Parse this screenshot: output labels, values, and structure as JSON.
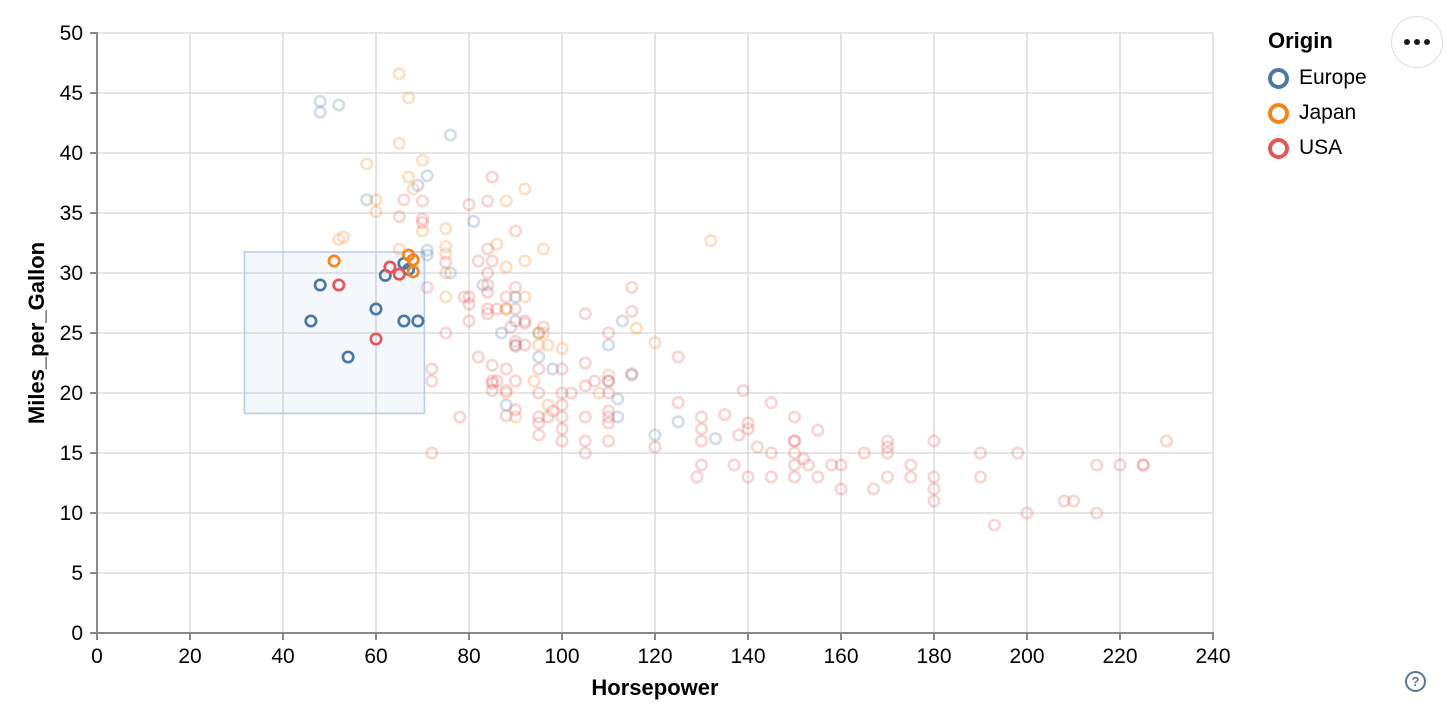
{
  "chart_data": {
    "type": "scatter",
    "xlabel": "Horsepower",
    "ylabel": "Miles_per_Gallon",
    "xlim": [
      0,
      240
    ],
    "ylim": [
      0,
      50
    ],
    "x_ticks": [
      0,
      20,
      40,
      60,
      80,
      100,
      120,
      140,
      160,
      180,
      200,
      220,
      240
    ],
    "y_ticks": [
      0,
      5,
      10,
      15,
      20,
      25,
      30,
      35,
      40,
      45,
      50
    ],
    "grid": true,
    "legend": {
      "title": "Origin",
      "position": "top-right",
      "entries": [
        {
          "label": "Europe",
          "color": "#4c78a8"
        },
        {
          "label": "Japan",
          "color": "#f58518"
        },
        {
          "label": "USA",
          "color": "#e45756"
        }
      ]
    },
    "brush": {
      "x": [
        31.7,
        70.4
      ],
      "y": [
        18.3,
        31.75
      ],
      "fill": "#7596c8",
      "fill_opacity": 0.08,
      "stroke": "#b7cdf0"
    },
    "point_style": {
      "radius": 5.2,
      "stroke_width": 2.7,
      "faded_opacity": 0.25,
      "selected_opacity": 1
    },
    "axis_style": {
      "grid_color": "#dddddd",
      "domain_color": "#888888",
      "tick_color": "#888888",
      "label_color": "#000000"
    },
    "series": [
      {
        "name": "Europe",
        "color": "#4c78a8",
        "points": [
          [
            46,
            26
          ],
          [
            48,
            29
          ],
          [
            54,
            23
          ],
          [
            60,
            27
          ],
          [
            62,
            29.8
          ],
          [
            66,
            26
          ],
          [
            69,
            26
          ],
          [
            66,
            30.8
          ],
          [
            67,
            30.3
          ],
          [
            48,
            44.3
          ],
          [
            52,
            44
          ],
          [
            48,
            43.4
          ],
          [
            76,
            41.5
          ],
          [
            71,
            38.1
          ],
          [
            69,
            37.3
          ],
          [
            58,
            36.1
          ],
          [
            81,
            34.3
          ],
          [
            71,
            31.9
          ],
          [
            71,
            31.5
          ],
          [
            76,
            30
          ],
          [
            83,
            29
          ],
          [
            90,
            28
          ],
          [
            90,
            26
          ],
          [
            90,
            24
          ],
          [
            110,
            24
          ],
          [
            87,
            25
          ],
          [
            95,
            25
          ],
          [
            95,
            23
          ],
          [
            98,
            22
          ],
          [
            113,
            26
          ],
          [
            115,
            21.6
          ],
          [
            110,
            21
          ],
          [
            88,
            19
          ],
          [
            112,
            18
          ],
          [
            112,
            19.5
          ],
          [
            125,
            17.6
          ],
          [
            120,
            16.5
          ],
          [
            133,
            16.2
          ]
        ]
      },
      {
        "name": "Japan",
        "color": "#f58518",
        "points": [
          [
            51,
            31
          ],
          [
            67,
            31.5
          ],
          [
            68,
            31.1
          ],
          [
            68,
            30.1
          ],
          [
            65,
            46.6
          ],
          [
            67,
            44.6
          ],
          [
            65,
            40.8
          ],
          [
            70,
            39.4
          ],
          [
            58,
            39.1
          ],
          [
            67,
            38
          ],
          [
            68,
            37
          ],
          [
            92,
            37
          ],
          [
            88,
            36
          ],
          [
            60,
            36.1
          ],
          [
            60,
            35.1
          ],
          [
            75,
            33.7
          ],
          [
            70,
            33.5
          ],
          [
            53,
            33
          ],
          [
            52,
            32.8
          ],
          [
            96,
            32
          ],
          [
            86,
            32.4
          ],
          [
            75,
            32.2
          ],
          [
            132,
            32.7
          ],
          [
            65,
            32
          ],
          [
            75,
            31.6
          ],
          [
            92,
            31
          ],
          [
            88,
            30.5
          ],
          [
            75,
            30
          ],
          [
            75,
            28
          ],
          [
            92,
            28
          ],
          [
            88,
            27
          ],
          [
            88,
            27
          ],
          [
            97,
            24
          ],
          [
            95,
            24
          ],
          [
            96,
            25
          ],
          [
            95,
            25
          ],
          [
            116,
            25.4
          ],
          [
            120,
            24.2
          ],
          [
            94,
            21
          ],
          [
            88,
            20
          ],
          [
            90,
            18
          ],
          [
            97,
            19
          ],
          [
            100,
            23.7
          ],
          [
            110,
            21.5
          ],
          [
            108,
            20
          ]
        ]
      },
      {
        "name": "USA",
        "color": "#e45756",
        "points": [
          [
            52,
            29
          ],
          [
            60,
            24.5
          ],
          [
            63,
            30.5
          ],
          [
            65,
            29.9
          ],
          [
            130,
            18
          ],
          [
            165,
            15
          ],
          [
            150,
            18
          ],
          [
            150,
            16
          ],
          [
            140,
            17
          ],
          [
            198,
            15
          ],
          [
            220,
            14
          ],
          [
            215,
            14
          ],
          [
            225,
            14
          ],
          [
            190,
            15
          ],
          [
            170,
            15
          ],
          [
            160,
            14
          ],
          [
            150,
            15
          ],
          [
            225,
            14
          ],
          [
            95,
            22
          ],
          [
            97,
            18
          ],
          [
            85,
            21
          ],
          [
            90,
            21
          ],
          [
            215,
            10
          ],
          [
            200,
            10
          ],
          [
            210,
            11
          ],
          [
            193,
            9
          ],
          [
            100,
            19
          ],
          [
            105,
            16
          ],
          [
            175,
            13
          ],
          [
            153,
            14
          ],
          [
            180,
            12
          ],
          [
            170,
            13
          ],
          [
            175,
            14
          ],
          [
            110,
            18
          ],
          [
            72,
            21
          ],
          [
            150,
            14
          ],
          [
            180,
            13
          ],
          [
            208,
            11
          ],
          [
            155,
            13
          ],
          [
            160,
            12
          ],
          [
            190,
            13
          ],
          [
            100,
            18
          ],
          [
            130,
            16
          ],
          [
            150,
            13
          ],
          [
            158,
            14
          ],
          [
            145,
            13
          ],
          [
            137,
            14
          ],
          [
            167,
            12
          ],
          [
            180,
            11
          ],
          [
            100,
            16
          ],
          [
            145,
            15
          ],
          [
            230,
            16
          ],
          [
            75,
            25
          ],
          [
            80,
            26
          ],
          [
            100,
            20
          ],
          [
            105,
            18
          ],
          [
            72,
            22
          ],
          [
            86,
            21
          ],
          [
            107,
            21
          ],
          [
            80,
            28
          ],
          [
            78,
            18
          ],
          [
            110,
            18.5
          ],
          [
            95,
            17.5
          ],
          [
            129,
            13
          ],
          [
            89,
            25.5
          ],
          [
            110,
            21
          ],
          [
            110,
            20
          ],
          [
            98,
            18.5
          ],
          [
            180,
            16
          ],
          [
            170,
            15.5
          ],
          [
            95,
            18
          ],
          [
            140,
            17.5
          ],
          [
            120,
            15.5
          ],
          [
            152,
            14.5
          ],
          [
            150,
            16
          ],
          [
            170,
            16
          ],
          [
            110,
            16
          ],
          [
            96,
            25.5
          ],
          [
            105,
            20.6
          ],
          [
            85,
            20.8
          ],
          [
            85,
            22.3
          ],
          [
            85,
            20.2
          ],
          [
            125,
            19.2
          ],
          [
            155,
            16.9
          ],
          [
            142,
            15.5
          ],
          [
            130,
            17
          ],
          [
            110,
            17.5
          ],
          [
            138,
            16.5
          ],
          [
            135,
            18.2
          ],
          [
            115,
            21.5
          ],
          [
            139,
            20.2
          ],
          [
            145,
            19.2
          ],
          [
            125,
            23
          ],
          [
            90,
            28.8
          ],
          [
            71,
            28.8
          ],
          [
            75,
            30.9
          ],
          [
            70,
            34.2
          ],
          [
            70,
            34.5
          ],
          [
            66,
            36.1
          ],
          [
            65,
            34.7
          ],
          [
            70,
            36
          ],
          [
            80,
            35.7
          ],
          [
            115,
            28.8
          ],
          [
            115,
            26.8
          ],
          [
            90,
            33.5
          ],
          [
            84,
            26.6
          ],
          [
            88,
            28
          ],
          [
            84,
            36
          ],
          [
            84,
            32
          ],
          [
            82,
            31
          ],
          [
            79,
            28
          ],
          [
            85,
            31
          ],
          [
            84,
            29
          ],
          [
            84,
            27
          ],
          [
            84,
            28.4
          ],
          [
            92,
            24
          ],
          [
            82,
            23
          ],
          [
            84,
            30
          ],
          [
            92,
            25.8
          ],
          [
            88,
            20.2
          ],
          [
            105,
            26.6
          ],
          [
            110,
            25
          ],
          [
            90,
            24.3
          ],
          [
            90,
            18.6
          ],
          [
            80,
            27.4
          ],
          [
            92,
            26
          ],
          [
            86,
            27
          ],
          [
            90,
            27
          ],
          [
            85,
            38
          ],
          [
            90,
            23.9
          ],
          [
            72,
            15
          ],
          [
            100,
            17
          ],
          [
            88,
            18.1
          ],
          [
            105,
            15
          ],
          [
            88,
            22
          ],
          [
            95,
            20
          ],
          [
            100,
            22
          ],
          [
            105,
            22.5
          ],
          [
            130,
            14
          ],
          [
            140,
            13
          ],
          [
            95,
            16.5
          ],
          [
            102,
            20
          ]
        ]
      }
    ]
  },
  "controls": {
    "menu_icon": "ellipsis-icon",
    "help_icon": "question-mark-icon",
    "help_glyph": "?"
  }
}
